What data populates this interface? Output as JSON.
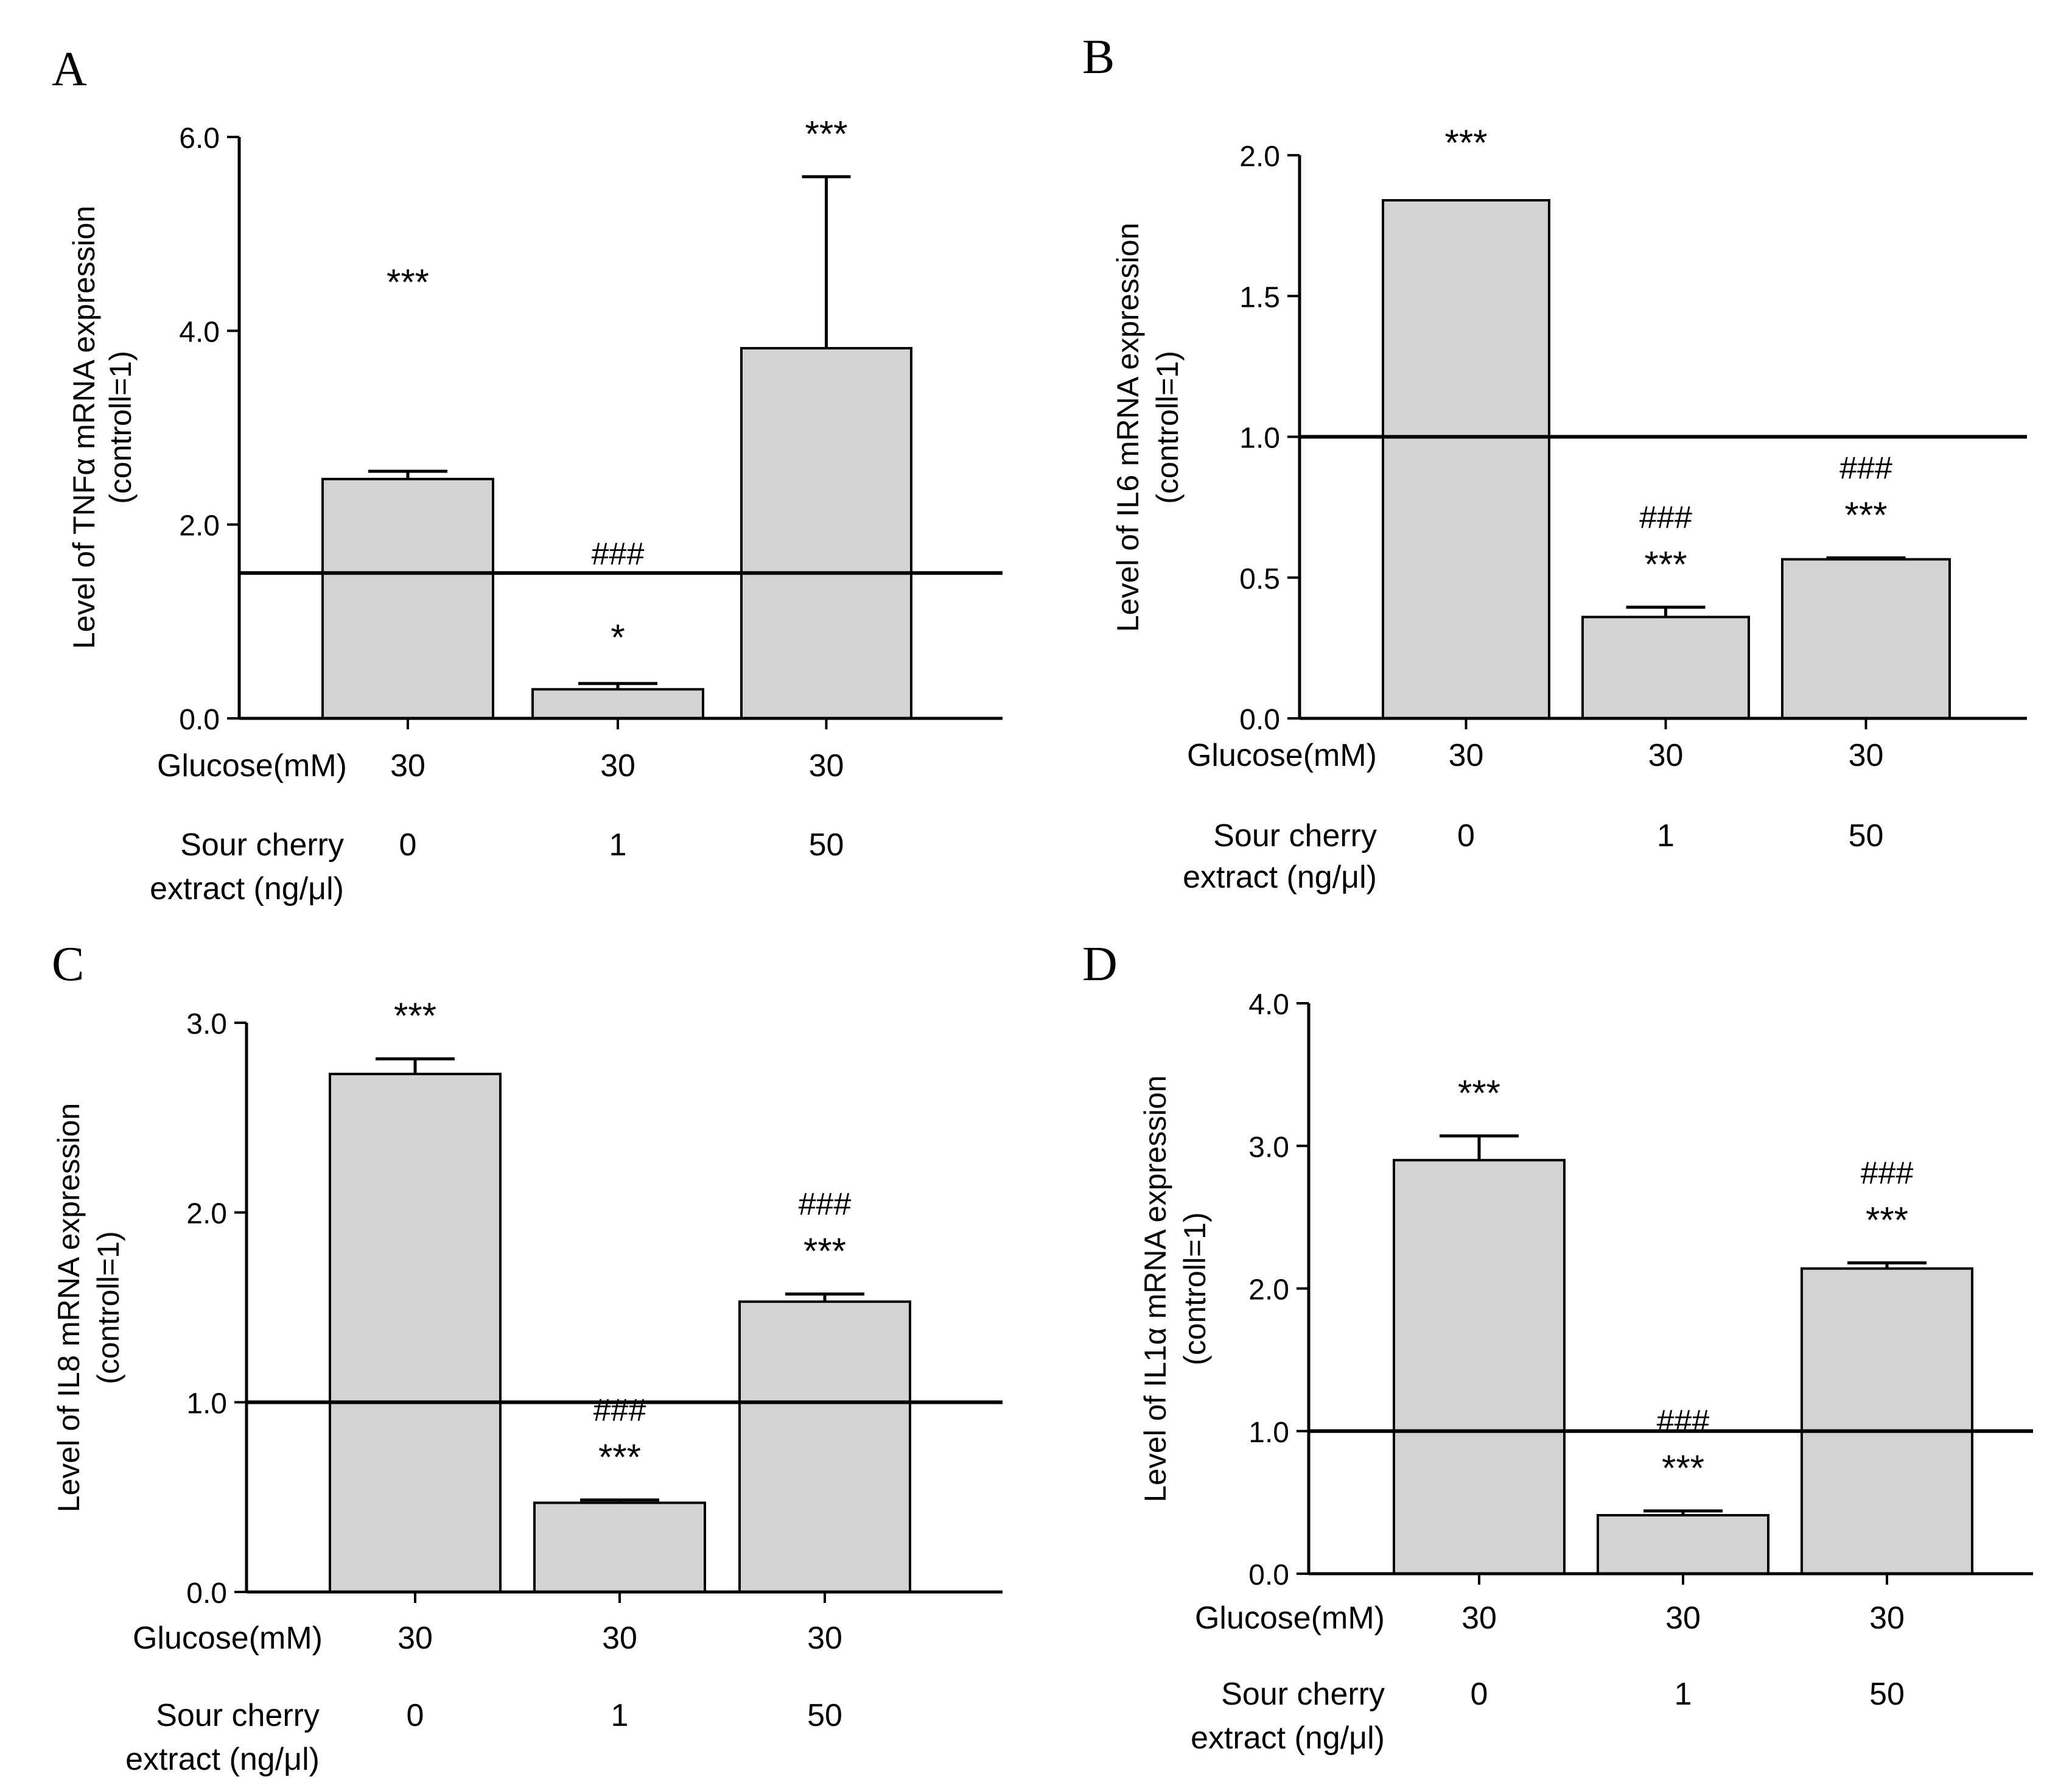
{
  "chart_data": [
    {
      "type": "bar",
      "panel": "A",
      "ylabel_line1": "Level of TNFα mRNA expression",
      "ylabel_line2": "(controll=1)",
      "ylim": [
        0,
        6.0
      ],
      "yticks": [
        "0.0",
        "2.0",
        "4.0",
        "6.0"
      ],
      "ytick_values": [
        0,
        2,
        4,
        6
      ],
      "reference_line": 1.5,
      "row1_label": "Glucose(mM)",
      "row2_label_line1": "Sour cherry",
      "row2_label_line2": "extract (ng/μl)",
      "glucose": [
        "30",
        "30",
        "30"
      ],
      "extract": [
        "0",
        "1",
        "50"
      ],
      "values": [
        2.47,
        0.3,
        3.82
      ],
      "errors": [
        0.08,
        0.06,
        1.77
      ],
      "annotations": [
        [
          "***"
        ],
        [
          "###",
          "*"
        ],
        [
          "***"
        ]
      ]
    },
    {
      "type": "bar",
      "panel": "B",
      "ylabel_line1": "Level of IL6 mRNA expression",
      "ylabel_line2": "(controll=1)",
      "ylim": [
        0,
        2.0
      ],
      "yticks": [
        "0.0",
        "0.5",
        "1.0",
        "1.5",
        "2.0"
      ],
      "ytick_values": [
        0,
        0.5,
        1.0,
        1.5,
        2.0
      ],
      "reference_line": 1.0,
      "row1_label": "Glucose(mM)",
      "row2_label_line1": "Sour cherry",
      "row2_label_line2": "extract (ng/μl)",
      "glucose": [
        "30",
        "30",
        "30"
      ],
      "extract": [
        "0",
        "1",
        "50"
      ],
      "values": [
        1.84,
        0.36,
        0.565
      ],
      "errors": [
        0.0,
        0.035,
        0.005
      ],
      "annotations": [
        [
          "***"
        ],
        [
          "###",
          "***"
        ],
        [
          "###",
          "***"
        ]
      ]
    },
    {
      "type": "bar",
      "panel": "C",
      "ylabel_line1": "Level of IL8 mRNA expression",
      "ylabel_line2": "(controll=1)",
      "ylim": [
        0,
        3.0
      ],
      "yticks": [
        "0.0",
        "1.0",
        "2.0",
        "3.0"
      ],
      "ytick_values": [
        0,
        1,
        2,
        3
      ],
      "reference_line": 1.0,
      "row1_label": "Glucose(mM)",
      "row2_label_line1": "Sour cherry",
      "row2_label_line2": "extract (ng/μl)",
      "glucose": [
        "30",
        "30",
        "30"
      ],
      "extract": [
        "0",
        "1",
        "50"
      ],
      "values": [
        2.73,
        0.47,
        1.53
      ],
      "errors": [
        0.08,
        0.015,
        0.04
      ],
      "annotations": [
        [
          "***"
        ],
        [
          "###",
          "***"
        ],
        [
          "###",
          "***"
        ]
      ]
    },
    {
      "type": "bar",
      "panel": "D",
      "ylabel_line1": "Level of IL1α mRNA expression",
      "ylabel_line2": "(controll=1)",
      "ylim": [
        0,
        4.0
      ],
      "yticks": [
        "0.0",
        "1.0",
        "2.0",
        "3.0",
        "4.0"
      ],
      "ytick_values": [
        0,
        1,
        2,
        3,
        4
      ],
      "reference_line": 1.0,
      "row1_label": "Glucose(mM)",
      "row2_label_line1": "Sour cherry",
      "row2_label_line2": "extract (ng/μl)",
      "glucose": [
        "30",
        "30",
        "30"
      ],
      "extract": [
        "0",
        "1",
        "50"
      ],
      "values": [
        2.9,
        0.41,
        2.14
      ],
      "errors": [
        0.17,
        0.03,
        0.04
      ],
      "annotations": [
        [
          "***"
        ],
        [
          "###",
          "***"
        ],
        [
          "###",
          "***"
        ]
      ]
    }
  ],
  "colors": {
    "bar_fill": "#d3d3d3",
    "stroke": "#000000"
  }
}
